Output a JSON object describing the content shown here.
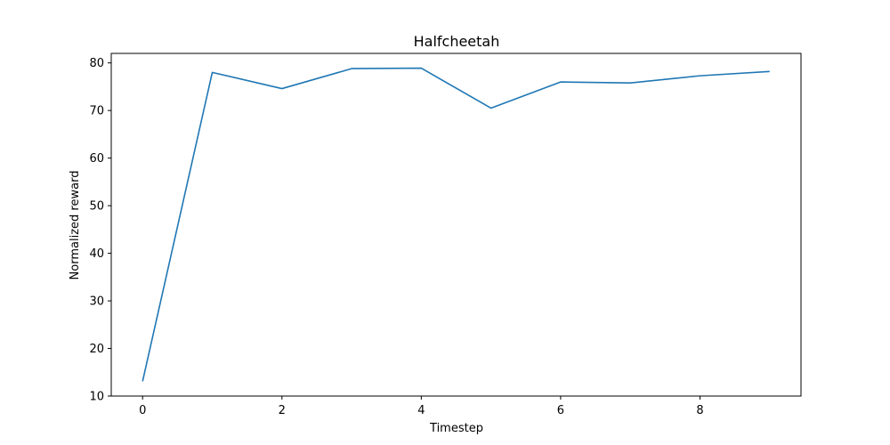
{
  "chart_data": {
    "type": "line",
    "title": "Halfcheetah",
    "xlabel": "Timestep",
    "ylabel": "Normalized reward",
    "xlim": [
      -0.45,
      9.45
    ],
    "ylim": [
      10,
      82
    ],
    "xticks": [
      0,
      2,
      4,
      6,
      8
    ],
    "yticks": [
      10,
      20,
      30,
      40,
      50,
      60,
      70,
      80
    ],
    "grid": false,
    "series": [
      {
        "color": "#1f77b4",
        "x": [
          0,
          1,
          2,
          3,
          4,
          5,
          6,
          7,
          8,
          9
        ],
        "y": [
          13.1,
          78.0,
          74.6,
          78.8,
          78.9,
          70.5,
          76.0,
          75.8,
          77.3,
          78.2
        ]
      }
    ]
  }
}
